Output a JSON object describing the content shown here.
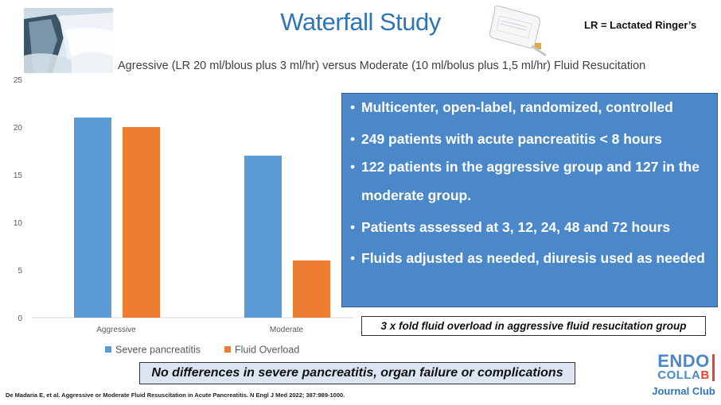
{
  "header": {
    "title": "Waterfall Study",
    "lr_note": "LR = Lactated Ringer’s",
    "subtitle": "Agressive (LR 20 ml/blous plus 3 ml/hr) versus Moderate (10 ml/bolus plus 1,5 ml/hr) Fluid Resucitation"
  },
  "chart_data": {
    "type": "bar",
    "categories": [
      "Aggressive",
      "Moderate"
    ],
    "series": [
      {
        "name": "Severe pancreatitis",
        "values": [
          21,
          17
        ],
        "color": "#5b9bd5"
      },
      {
        "name": "Fluid Overload",
        "values": [
          20,
          6
        ],
        "color": "#ed7d31"
      }
    ],
    "ylim": [
      0,
      25
    ],
    "yticks": [
      0,
      5,
      10,
      15,
      20,
      25
    ],
    "grid": false,
    "legend": "bottom"
  },
  "bullets": [
    "Multicenter, open-label, randomized, controlled",
    "249 patients with acute pancreatitis < 8 hours",
    "122 patients in the aggressive group and 127 in the moderate group.",
    "Patients assessed at 3, 12, 24, 48 and 72 hours",
    "Fluids adjusted as needed, diuresis used as needed"
  ],
  "note": "3 x fold fluid overload in aggressive fluid resucitation group",
  "banner": "No differences in severe pancreatitis, organ failure or complications",
  "citation": "De Madaria E, et al. Aggressive or Moderate Fluid Resuscitation in Acute Pancreatitis. N Engl J Med 2022; 387:989-1000.",
  "logo": {
    "line1": "ENDO",
    "line2_main": "COLLA",
    "line2_accent": "B",
    "line3": "Journal Club"
  },
  "colors": {
    "accent": "#2e75b6",
    "box": "#4a88c9",
    "banner": "#dce6f2"
  }
}
